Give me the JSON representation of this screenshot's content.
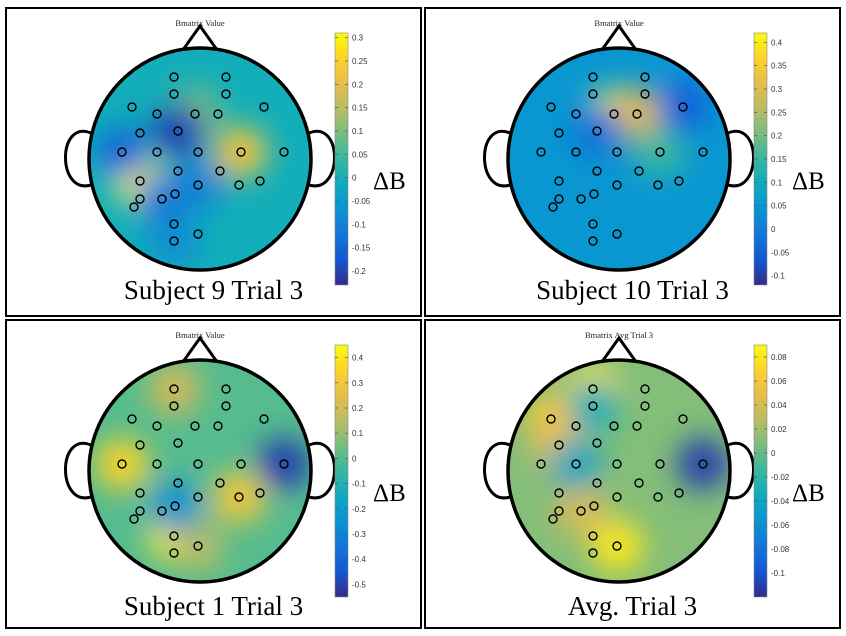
{
  "panels": [
    {
      "title": "Bmatrix Value",
      "caption": "Subject 9 Trial 3",
      "delta_label": "ΔB",
      "colorbar_ticks": [
        "0.3",
        "0.25",
        "0.2",
        "0.15",
        "0.1",
        "0.05",
        "0",
        "-0.05",
        "-0.1",
        "-0.15",
        "-0.2"
      ],
      "range": [
        -0.23,
        0.31
      ],
      "base_value": 0.0,
      "hotspots": [
        {
          "electrode": 18,
          "value": 0.3
        },
        {
          "electrode": 14,
          "value": 0.22
        },
        {
          "electrode": 6,
          "value": 0.1
        },
        {
          "electrode": 10,
          "value": -0.2
        },
        {
          "electrode": 11,
          "value": -0.15
        },
        {
          "electrode": 25,
          "value": -0.12
        },
        {
          "electrode": 20,
          "value": -0.1
        },
        {
          "electrode": 28,
          "value": -0.08
        }
      ]
    },
    {
      "title": "Bmatrix Value",
      "caption": "Subject 10 Trial 3",
      "delta_label": "ΔB",
      "colorbar_ticks": [
        "0.4",
        "0.35",
        "0.3",
        "0.25",
        "0.2",
        "0.15",
        "0.1",
        "0.05",
        "0",
        "-0.05",
        "-0.1"
      ],
      "range": [
        -0.12,
        0.42
      ],
      "base_value": 0.05,
      "hotspots": [
        {
          "electrode": 6,
          "value": 0.4
        },
        {
          "electrode": 7,
          "value": 0.3
        },
        {
          "electrode": 14,
          "value": 0.15
        },
        {
          "electrode": 8,
          "value": -0.05
        },
        {
          "electrode": 10,
          "value": -0.02
        }
      ]
    },
    {
      "title": "Bmatrix Value",
      "caption": "Subject 1 Trial 3",
      "delta_label": "ΔB",
      "colorbar_ticks": [
        "0.4",
        "0.3",
        "0.2",
        "0.1",
        "0",
        "-0.1",
        "-0.2",
        "-0.3",
        "-0.4",
        "-0.5"
      ],
      "range": [
        -0.55,
        0.45
      ],
      "base_value": 0.0,
      "hotspots": [
        {
          "electrode": 11,
          "value": 0.35
        },
        {
          "electrode": 26,
          "value": 0.4
        },
        {
          "electrode": 21,
          "value": 0.3
        },
        {
          "electrode": 0,
          "value": 0.2
        },
        {
          "electrode": 27,
          "value": 0.15
        },
        {
          "electrode": 15,
          "value": -0.5
        },
        {
          "electrode": 24,
          "value": -0.25
        }
      ]
    },
    {
      "title": "Bmatrix Avg Trial 3",
      "caption": "Avg. Trial 3",
      "delta_label": "ΔB",
      "colorbar_ticks": [
        "0.08",
        "0.06",
        "0.04",
        "0.02",
        "0",
        "-0.02",
        "-0.04",
        "-0.06",
        "-0.08",
        "-0.1"
      ],
      "range": [
        -0.12,
        0.09
      ],
      "base_value": 0.01,
      "hotspots": [
        {
          "electrode": 0,
          "value": 0.08
        },
        {
          "electrode": 27,
          "value": 0.08
        },
        {
          "electrode": 4,
          "value": 0.06
        },
        {
          "electrode": 9,
          "value": 0.05
        },
        {
          "electrode": 25,
          "value": 0.04
        },
        {
          "electrode": 15,
          "value": -0.11
        },
        {
          "electrode": 12,
          "value": -0.04
        },
        {
          "electrode": 2,
          "value": -0.03
        }
      ]
    }
  ]
}
